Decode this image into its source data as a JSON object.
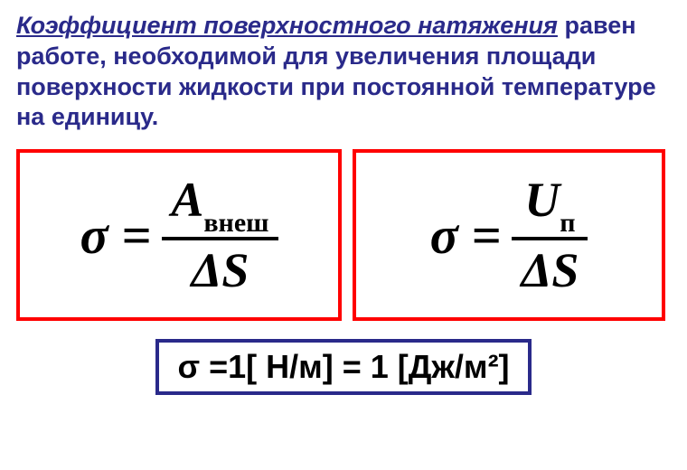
{
  "definition": {
    "term": "Коэффициент поверхностного натяжения",
    "rest": " равен работе, необходимой для увеличения площади поверхности жидкости при постоянной температуре на единицу.",
    "term_color": "#2a2a8a",
    "rest_color": "#2a2a8a"
  },
  "formula1": {
    "lhs": "σ =",
    "numerator_main": "A",
    "numerator_sub": "внеш",
    "denominator": "ΔS",
    "border_color": "#ff0000"
  },
  "formula2": {
    "lhs": "σ =",
    "numerator_main": "U",
    "numerator_sub": "п",
    "denominator": "ΔS",
    "border_color": "#ff0000"
  },
  "units": {
    "text": "σ =1[ Н/м] = 1 [Дж/м²]",
    "border_color": "#2a2a8a"
  }
}
